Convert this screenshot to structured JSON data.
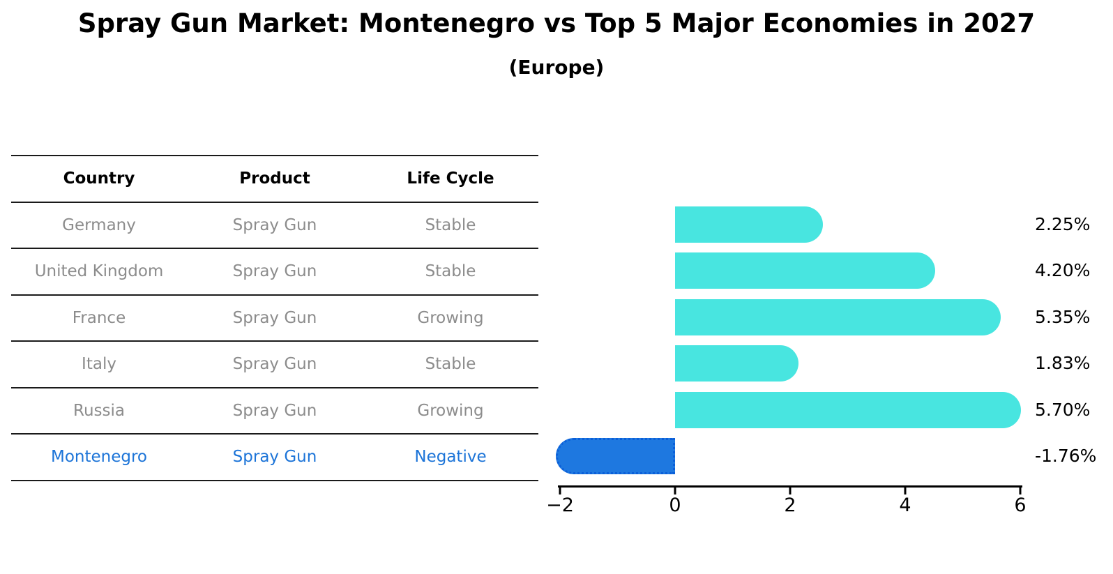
{
  "title": "Spray Gun Market: Montenegro vs Top 5 Major Economies in 2027",
  "subtitle": "(Europe)",
  "colors": {
    "bar_positive": "#48e5e0",
    "bar_negative": "#1e78e0",
    "highlight_text": "#1c74d8",
    "table_text": "#8c8c8c",
    "axis_and_labels": "#000000"
  },
  "table": {
    "headers": [
      "Country",
      "Product",
      "Life Cycle"
    ],
    "rows": [
      {
        "country": "Germany",
        "product": "Spray Gun",
        "life_cycle": "Stable",
        "highlighted": false
      },
      {
        "country": "United Kingdom",
        "product": "Spray Gun",
        "life_cycle": "Stable",
        "highlighted": false
      },
      {
        "country": "France",
        "product": "Spray Gun",
        "life_cycle": "Growing",
        "highlighted": false
      },
      {
        "country": "Italy",
        "product": "Spray Gun",
        "life_cycle": "Stable",
        "highlighted": false
      },
      {
        "country": "Russia",
        "product": "Spray Gun",
        "life_cycle": "Growing",
        "highlighted": false
      },
      {
        "country": "Montenegro",
        "product": "Spray Gun",
        "life_cycle": "Negative",
        "highlighted": true
      }
    ]
  },
  "chart_data": {
    "type": "bar",
    "orientation": "horizontal",
    "title": "Spray Gun Market: Montenegro vs Top 5 Major Economies in 2027 (Europe)",
    "categories": [
      "Germany",
      "United Kingdom",
      "France",
      "Italy",
      "Russia",
      "Montenegro"
    ],
    "values": [
      2.25,
      4.2,
      5.35,
      1.83,
      5.7,
      -1.76
    ],
    "value_labels": [
      "2.25%",
      "4.20%",
      "5.35%",
      "1.83%",
      "5.70%",
      "-1.76%"
    ],
    "xlabel": "",
    "ylabel": "",
    "xlim": [
      -2,
      6
    ],
    "xticks": [
      -2,
      0,
      2,
      4,
      6
    ],
    "xtick_labels": [
      "−2",
      "0",
      "2",
      "4",
      "6"
    ],
    "grid": false,
    "legend": false
  }
}
